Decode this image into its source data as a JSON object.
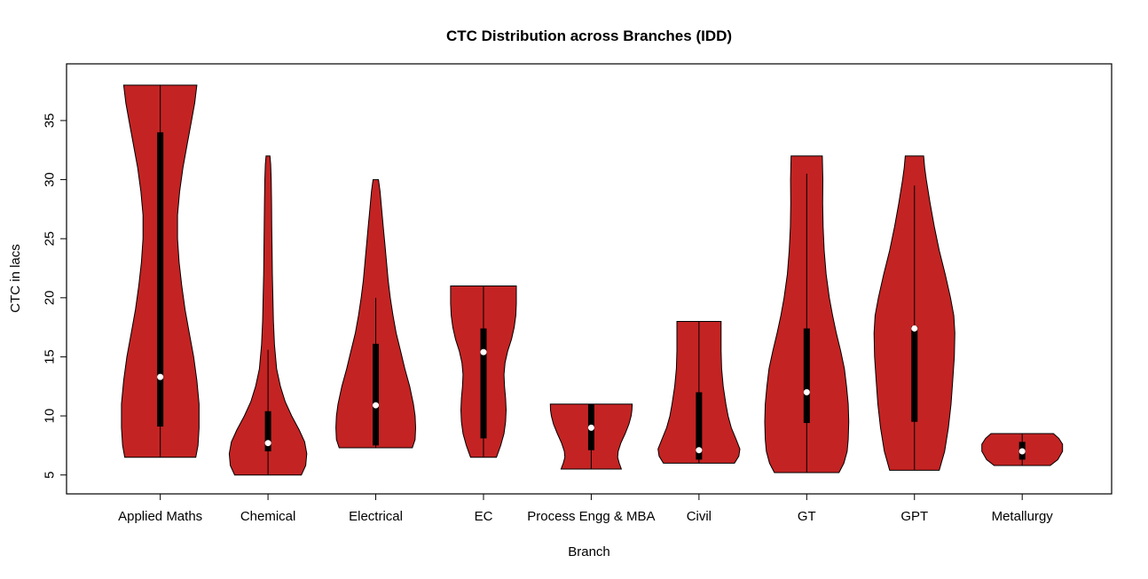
{
  "chart_data": {
    "type": "violin",
    "title": "CTC Distribution across Branches (IDD)",
    "xlabel": "Branch",
    "ylabel": "CTC in lacs",
    "ylim": [
      3.4,
      39.8
    ],
    "xlim": [
      0.13,
      9.83
    ],
    "yticks": [
      5,
      10,
      15,
      20,
      25,
      30,
      35
    ],
    "grid": false,
    "legend": "none",
    "violin_fill": "#c42323",
    "violin_stroke": "#000000",
    "box_color": "#000000",
    "median_dot_color": "#ffffff",
    "categories": [
      "Applied Maths",
      "Chemical",
      "Electrical",
      "EC",
      "Process Engg & MBA",
      "Civil",
      "GT",
      "GPT",
      "Metallurgy"
    ],
    "series": [
      {
        "name": "Applied Maths",
        "min": 6.5,
        "max": 38.0,
        "median": 13.3,
        "q1": 9.1,
        "q3": 34.0,
        "whisker_low": 6.5,
        "whisker_high": 38.0,
        "profile": [
          [
            6.5,
            0.33
          ],
          [
            7.5,
            0.35
          ],
          [
            9,
            0.36
          ],
          [
            11,
            0.36
          ],
          [
            13,
            0.34
          ],
          [
            15,
            0.31
          ],
          [
            17,
            0.27
          ],
          [
            19,
            0.23
          ],
          [
            21,
            0.2
          ],
          [
            23,
            0.175
          ],
          [
            25,
            0.16
          ],
          [
            27,
            0.16
          ],
          [
            29,
            0.18
          ],
          [
            31,
            0.21
          ],
          [
            33,
            0.25
          ],
          [
            35,
            0.29
          ],
          [
            36.5,
            0.32
          ],
          [
            38,
            0.34
          ]
        ]
      },
      {
        "name": "Chemical",
        "min": 5.0,
        "max": 32.0,
        "median": 7.7,
        "q1": 7.0,
        "q3": 10.4,
        "whisker_low": 5.0,
        "whisker_high": 15.6,
        "profile": [
          [
            5,
            0.31
          ],
          [
            5.8,
            0.35
          ],
          [
            6.8,
            0.36
          ],
          [
            7.8,
            0.34
          ],
          [
            8.8,
            0.29
          ],
          [
            10,
            0.22
          ],
          [
            11.2,
            0.16
          ],
          [
            12.5,
            0.115
          ],
          [
            14,
            0.08
          ],
          [
            16,
            0.06
          ],
          [
            18,
            0.05
          ],
          [
            20,
            0.045
          ],
          [
            22,
            0.04
          ],
          [
            24,
            0.038
          ],
          [
            26,
            0.035
          ],
          [
            28,
            0.033
          ],
          [
            30,
            0.03
          ],
          [
            31.3,
            0.025
          ],
          [
            32,
            0.018
          ]
        ]
      },
      {
        "name": "Electrical",
        "min": 7.3,
        "max": 30.0,
        "median": 10.9,
        "q1": 7.5,
        "q3": 16.1,
        "whisker_low": 7.3,
        "whisker_high": 20.0,
        "profile": [
          [
            7.3,
            0.34
          ],
          [
            8,
            0.365
          ],
          [
            9,
            0.37
          ],
          [
            10,
            0.365
          ],
          [
            11,
            0.35
          ],
          [
            12.5,
            0.315
          ],
          [
            14,
            0.27
          ],
          [
            15.5,
            0.23
          ],
          [
            17,
            0.19
          ],
          [
            18.5,
            0.16
          ],
          [
            20,
            0.135
          ],
          [
            21.5,
            0.115
          ],
          [
            23,
            0.1
          ],
          [
            24.5,
            0.085
          ],
          [
            26,
            0.07
          ],
          [
            27.5,
            0.055
          ],
          [
            29,
            0.04
          ],
          [
            30,
            0.025
          ]
        ]
      },
      {
        "name": "EC",
        "min": 6.5,
        "max": 21.0,
        "median": 15.4,
        "q1": 8.1,
        "q3": 17.4,
        "whisker_low": 6.5,
        "whisker_high": 21.0,
        "profile": [
          [
            6.5,
            0.12
          ],
          [
            7.5,
            0.16
          ],
          [
            8.5,
            0.19
          ],
          [
            9.5,
            0.205
          ],
          [
            10.5,
            0.21
          ],
          [
            11.5,
            0.205
          ],
          [
            12.5,
            0.195
          ],
          [
            13.5,
            0.19
          ],
          [
            14.5,
            0.2
          ],
          [
            15.5,
            0.225
          ],
          [
            16.5,
            0.26
          ],
          [
            17.5,
            0.285
          ],
          [
            18.5,
            0.3
          ],
          [
            19.5,
            0.305
          ],
          [
            21,
            0.305
          ]
        ]
      },
      {
        "name": "Process Engg & MBA",
        "min": 5.5,
        "max": 11.0,
        "median": 9.0,
        "q1": 7.1,
        "q3": 11.0,
        "whisker_low": 5.5,
        "whisker_high": 11.0,
        "profile": [
          [
            5.5,
            0.28
          ],
          [
            6,
            0.26
          ],
          [
            6.5,
            0.245
          ],
          [
            7,
            0.25
          ],
          [
            7.7,
            0.275
          ],
          [
            8.5,
            0.315
          ],
          [
            9.3,
            0.35
          ],
          [
            10,
            0.37
          ],
          [
            10.5,
            0.378
          ],
          [
            11,
            0.38
          ]
        ]
      },
      {
        "name": "Civil",
        "min": 6.0,
        "max": 18.0,
        "median": 7.1,
        "q1": 6.3,
        "q3": 12.0,
        "whisker_low": 6.0,
        "whisker_high": 18.0,
        "profile": [
          [
            6,
            0.33
          ],
          [
            6.6,
            0.37
          ],
          [
            7.2,
            0.38
          ],
          [
            8,
            0.345
          ],
          [
            9,
            0.3
          ],
          [
            10,
            0.27
          ],
          [
            11,
            0.25
          ],
          [
            12.5,
            0.225
          ],
          [
            14,
            0.21
          ],
          [
            15.5,
            0.205
          ],
          [
            17,
            0.205
          ],
          [
            18,
            0.205
          ]
        ]
      },
      {
        "name": "GT",
        "min": 5.2,
        "max": 32.0,
        "median": 12.0,
        "q1": 9.4,
        "q3": 17.4,
        "whisker_low": 5.2,
        "whisker_high": 30.5,
        "profile": [
          [
            5.2,
            0.3
          ],
          [
            6,
            0.345
          ],
          [
            7,
            0.375
          ],
          [
            8,
            0.385
          ],
          [
            9.5,
            0.39
          ],
          [
            11,
            0.385
          ],
          [
            12.5,
            0.37
          ],
          [
            14,
            0.35
          ],
          [
            15.5,
            0.315
          ],
          [
            17,
            0.275
          ],
          [
            18.5,
            0.24
          ],
          [
            20,
            0.21
          ],
          [
            22,
            0.18
          ],
          [
            24,
            0.162
          ],
          [
            26,
            0.152
          ],
          [
            28,
            0.148
          ],
          [
            30,
            0.15
          ],
          [
            32,
            0.145
          ]
        ]
      },
      {
        "name": "GPT",
        "min": 5.4,
        "max": 32.0,
        "median": 17.4,
        "q1": 9.5,
        "q3": 17.6,
        "whisker_low": 5.4,
        "whisker_high": 29.5,
        "profile": [
          [
            5.4,
            0.23
          ],
          [
            7,
            0.28
          ],
          [
            9,
            0.315
          ],
          [
            11,
            0.34
          ],
          [
            13,
            0.355
          ],
          [
            15,
            0.37
          ],
          [
            17,
            0.375
          ],
          [
            18.5,
            0.365
          ],
          [
            20,
            0.335
          ],
          [
            22,
            0.285
          ],
          [
            24,
            0.23
          ],
          [
            26,
            0.185
          ],
          [
            28,
            0.145
          ],
          [
            30,
            0.11
          ],
          [
            31,
            0.095
          ],
          [
            32,
            0.085
          ]
        ]
      },
      {
        "name": "Metallurgy",
        "min": 5.8,
        "max": 8.5,
        "median": 7.0,
        "q1": 6.3,
        "q3": 7.8,
        "whisker_low": 5.8,
        "whisker_high": 8.5,
        "profile": [
          [
            5.8,
            0.26
          ],
          [
            6.3,
            0.33
          ],
          [
            7,
            0.375
          ],
          [
            7.6,
            0.375
          ],
          [
            8.1,
            0.34
          ],
          [
            8.5,
            0.29
          ]
        ]
      }
    ]
  }
}
